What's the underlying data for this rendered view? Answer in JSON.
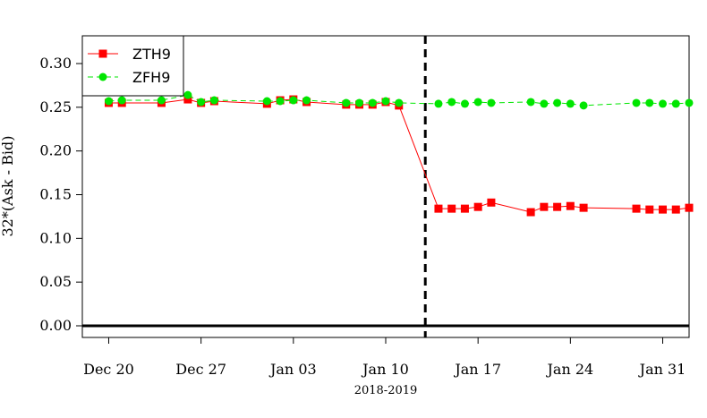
{
  "chart_data": {
    "type": "line",
    "ylabel": "32*(Ask - Bid)",
    "xlabel": "2018-2019",
    "ylim": [
      0,
      0.32
    ],
    "yticks": [
      0.0,
      0.05,
      0.1,
      0.15,
      0.2,
      0.25,
      0.3
    ],
    "ytick_labels": [
      "0.00",
      "0.05",
      "0.10",
      "0.15",
      "0.20",
      "0.25",
      "0.30"
    ],
    "xlim": [
      "2018-12-18",
      "2019-02-02"
    ],
    "xticks": [
      "2018-12-20",
      "2018-12-27",
      "2019-01-03",
      "2019-01-10",
      "2019-01-17",
      "2019-01-24",
      "2019-01-31"
    ],
    "xtick_labels": [
      "Dec 20",
      "Dec 27",
      "Jan 03",
      "Jan 10",
      "Jan 17",
      "Jan 24",
      "Jan 31"
    ],
    "hline": 0,
    "vline": "2019-01-13",
    "legend_position": "top-left",
    "grid": false,
    "series": [
      {
        "name": "ZTH9",
        "color": "#ff0000",
        "marker": "square",
        "line_style": "solid",
        "points": [
          [
            "2018-12-20",
            0.255
          ],
          [
            "2018-12-21",
            0.255
          ],
          [
            "2018-12-24",
            0.255
          ],
          [
            "2018-12-26",
            0.259
          ],
          [
            "2018-12-27",
            0.255
          ],
          [
            "2018-12-28",
            0.257
          ],
          [
            "2019-01-01",
            0.254
          ],
          [
            "2019-01-02",
            0.258
          ],
          [
            "2019-01-03",
            0.259
          ],
          [
            "2019-01-04",
            0.256
          ],
          [
            "2019-01-07",
            0.253
          ],
          [
            "2019-01-08",
            0.253
          ],
          [
            "2019-01-09",
            0.253
          ],
          [
            "2019-01-10",
            0.256
          ],
          [
            "2019-01-11",
            0.252
          ],
          [
            "2019-01-14",
            0.134
          ],
          [
            "2019-01-15",
            0.134
          ],
          [
            "2019-01-16",
            0.134
          ],
          [
            "2019-01-17",
            0.136
          ],
          [
            "2019-01-18",
            0.141
          ],
          [
            "2019-01-21",
            0.13
          ],
          [
            "2019-01-22",
            0.136
          ],
          [
            "2019-01-23",
            0.136
          ],
          [
            "2019-01-24",
            0.137
          ],
          [
            "2019-01-25",
            0.135
          ],
          [
            "2019-01-29",
            0.134
          ],
          [
            "2019-01-30",
            0.133
          ],
          [
            "2019-01-31",
            0.133
          ],
          [
            "2019-02-01",
            0.133
          ],
          [
            "2019-02-02",
            0.135
          ]
        ]
      },
      {
        "name": "ZFH9",
        "color": "#00e600",
        "marker": "circle",
        "line_style": "dashed",
        "points": [
          [
            "2018-12-20",
            0.257
          ],
          [
            "2018-12-21",
            0.258
          ],
          [
            "2018-12-24",
            0.258
          ],
          [
            "2018-12-26",
            0.264
          ],
          [
            "2018-12-27",
            0.256
          ],
          [
            "2018-12-28",
            0.258
          ],
          [
            "2019-01-01",
            0.257
          ],
          [
            "2019-01-02",
            0.257
          ],
          [
            "2019-01-03",
            0.258
          ],
          [
            "2019-01-04",
            0.258
          ],
          [
            "2019-01-07",
            0.255
          ],
          [
            "2019-01-08",
            0.255
          ],
          [
            "2019-01-09",
            0.255
          ],
          [
            "2019-01-10",
            0.257
          ],
          [
            "2019-01-11",
            0.255
          ],
          [
            "2019-01-14",
            0.254
          ],
          [
            "2019-01-15",
            0.256
          ],
          [
            "2019-01-16",
            0.254
          ],
          [
            "2019-01-17",
            0.256
          ],
          [
            "2019-01-18",
            0.255
          ],
          [
            "2019-01-21",
            0.256
          ],
          [
            "2019-01-22",
            0.254
          ],
          [
            "2019-01-23",
            0.255
          ],
          [
            "2019-01-24",
            0.254
          ],
          [
            "2019-01-25",
            0.252
          ],
          [
            "2019-01-29",
            0.255
          ],
          [
            "2019-01-30",
            0.255
          ],
          [
            "2019-01-31",
            0.254
          ],
          [
            "2019-02-01",
            0.254
          ],
          [
            "2019-02-02",
            0.255
          ]
        ]
      }
    ]
  }
}
